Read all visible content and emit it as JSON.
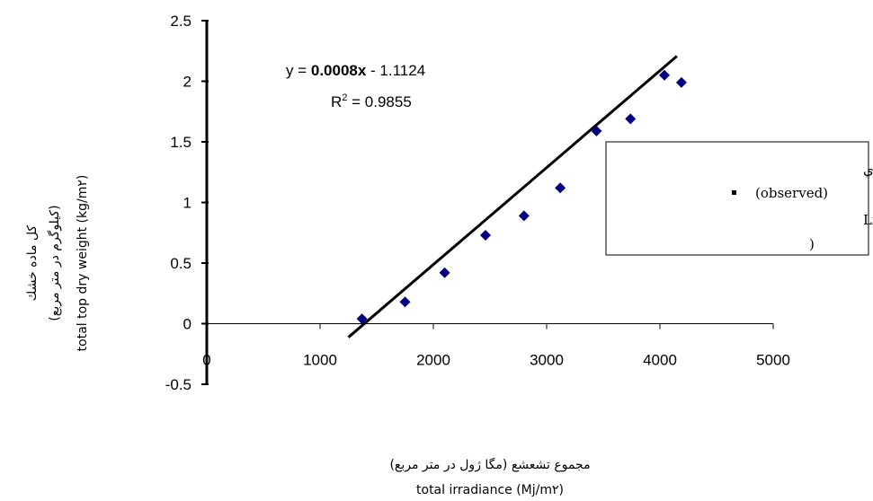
{
  "chart_data": {
    "type": "scatter",
    "x": [
      1370,
      1750,
      2100,
      2460,
      2800,
      3120,
      3440,
      3740,
      4040,
      4190
    ],
    "y": [
      0.04,
      0.18,
      0.42,
      0.73,
      0.89,
      1.12,
      1.59,
      1.69,
      2.05,
      1.99
    ],
    "trendline": {
      "slope": 0.0008,
      "intercept": -1.1124,
      "x_range": [
        1250,
        4150
      ]
    },
    "xlim": [
      0,
      5000
    ],
    "ylim": [
      -0.5,
      2.5
    ],
    "x_ticks": [
      "0",
      "1000",
      "2000",
      "3000",
      "4000",
      "5000"
    ],
    "y_ticks": [
      "-0.5",
      "0",
      "0.5",
      "1",
      "1.5",
      "2",
      "2.5"
    ],
    "equation": {
      "prefix": "y = ",
      "slope": "0.0008x",
      "suffix": " - 1.1124",
      "r2_label": "R",
      "r2_sup": "2",
      "r2_value": " = 0.9855"
    },
    "xlabel_fa": "مجموع تشعشع (مگا ژول در متر مربع)",
    "xlabel_en": "total irradiance  (Mj/m۲)",
    "ylabel_fa1": "کل ماده خشك",
    "ylabel_fa2": "(کیلوگرم در متر مربع)",
    "ylabel_en": "total top dry weight (kg/m۲)",
    "legend": {
      "line1": "مـشا هـد ه   اي",
      "line2": "(observed)",
      "line3": "خط بـر ا ز ش  )  Linear",
      "line4": ")"
    },
    "grid": false,
    "marker_color": "#000080",
    "line_color": "#000000"
  }
}
